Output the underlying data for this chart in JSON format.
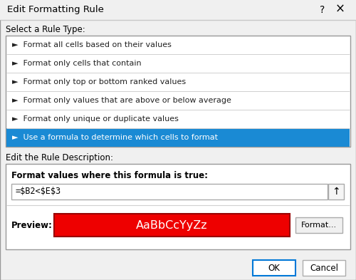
{
  "title": "Edit Formatting Rule",
  "help_symbol": "?",
  "close_symbol": "×",
  "select_label": "Select a Rule Type:",
  "rule_items": [
    "►  Format all cells based on their values",
    "►  Format only cells that contain",
    "►  Format only top or bottom ranked values",
    "►  Format only values that are above or below average",
    "►  Format only unique or duplicate values",
    "►  Use a formula to determine which cells to format"
  ],
  "selected_index": 5,
  "selected_bg": "#1a8ad4",
  "selected_fg": "#ffffff",
  "rule_bg": "#ffffff",
  "rule_fg": "#222222",
  "edit_label": "Edit the Rule Description:",
  "formula_label": "Format values where this formula is true:",
  "formula_value": "=$B2<$E$3",
  "preview_label": "Preview:",
  "preview_text": "AaBbCcYyZz",
  "preview_bg": "#ee0000",
  "preview_fg": "#ffffff",
  "format_btn": "Format...",
  "ok_btn": "OK",
  "cancel_btn": "Cancel",
  "dialog_bg": "#f0f0f0",
  "box_bg": "#ffffff",
  "border_color": "#999999",
  "btn_border_blue": "#0078d7",
  "btn_border_gray": "#adadad",
  "separator_color": "#d0d0d0",
  "title_bar_line": "#c8c8c8"
}
